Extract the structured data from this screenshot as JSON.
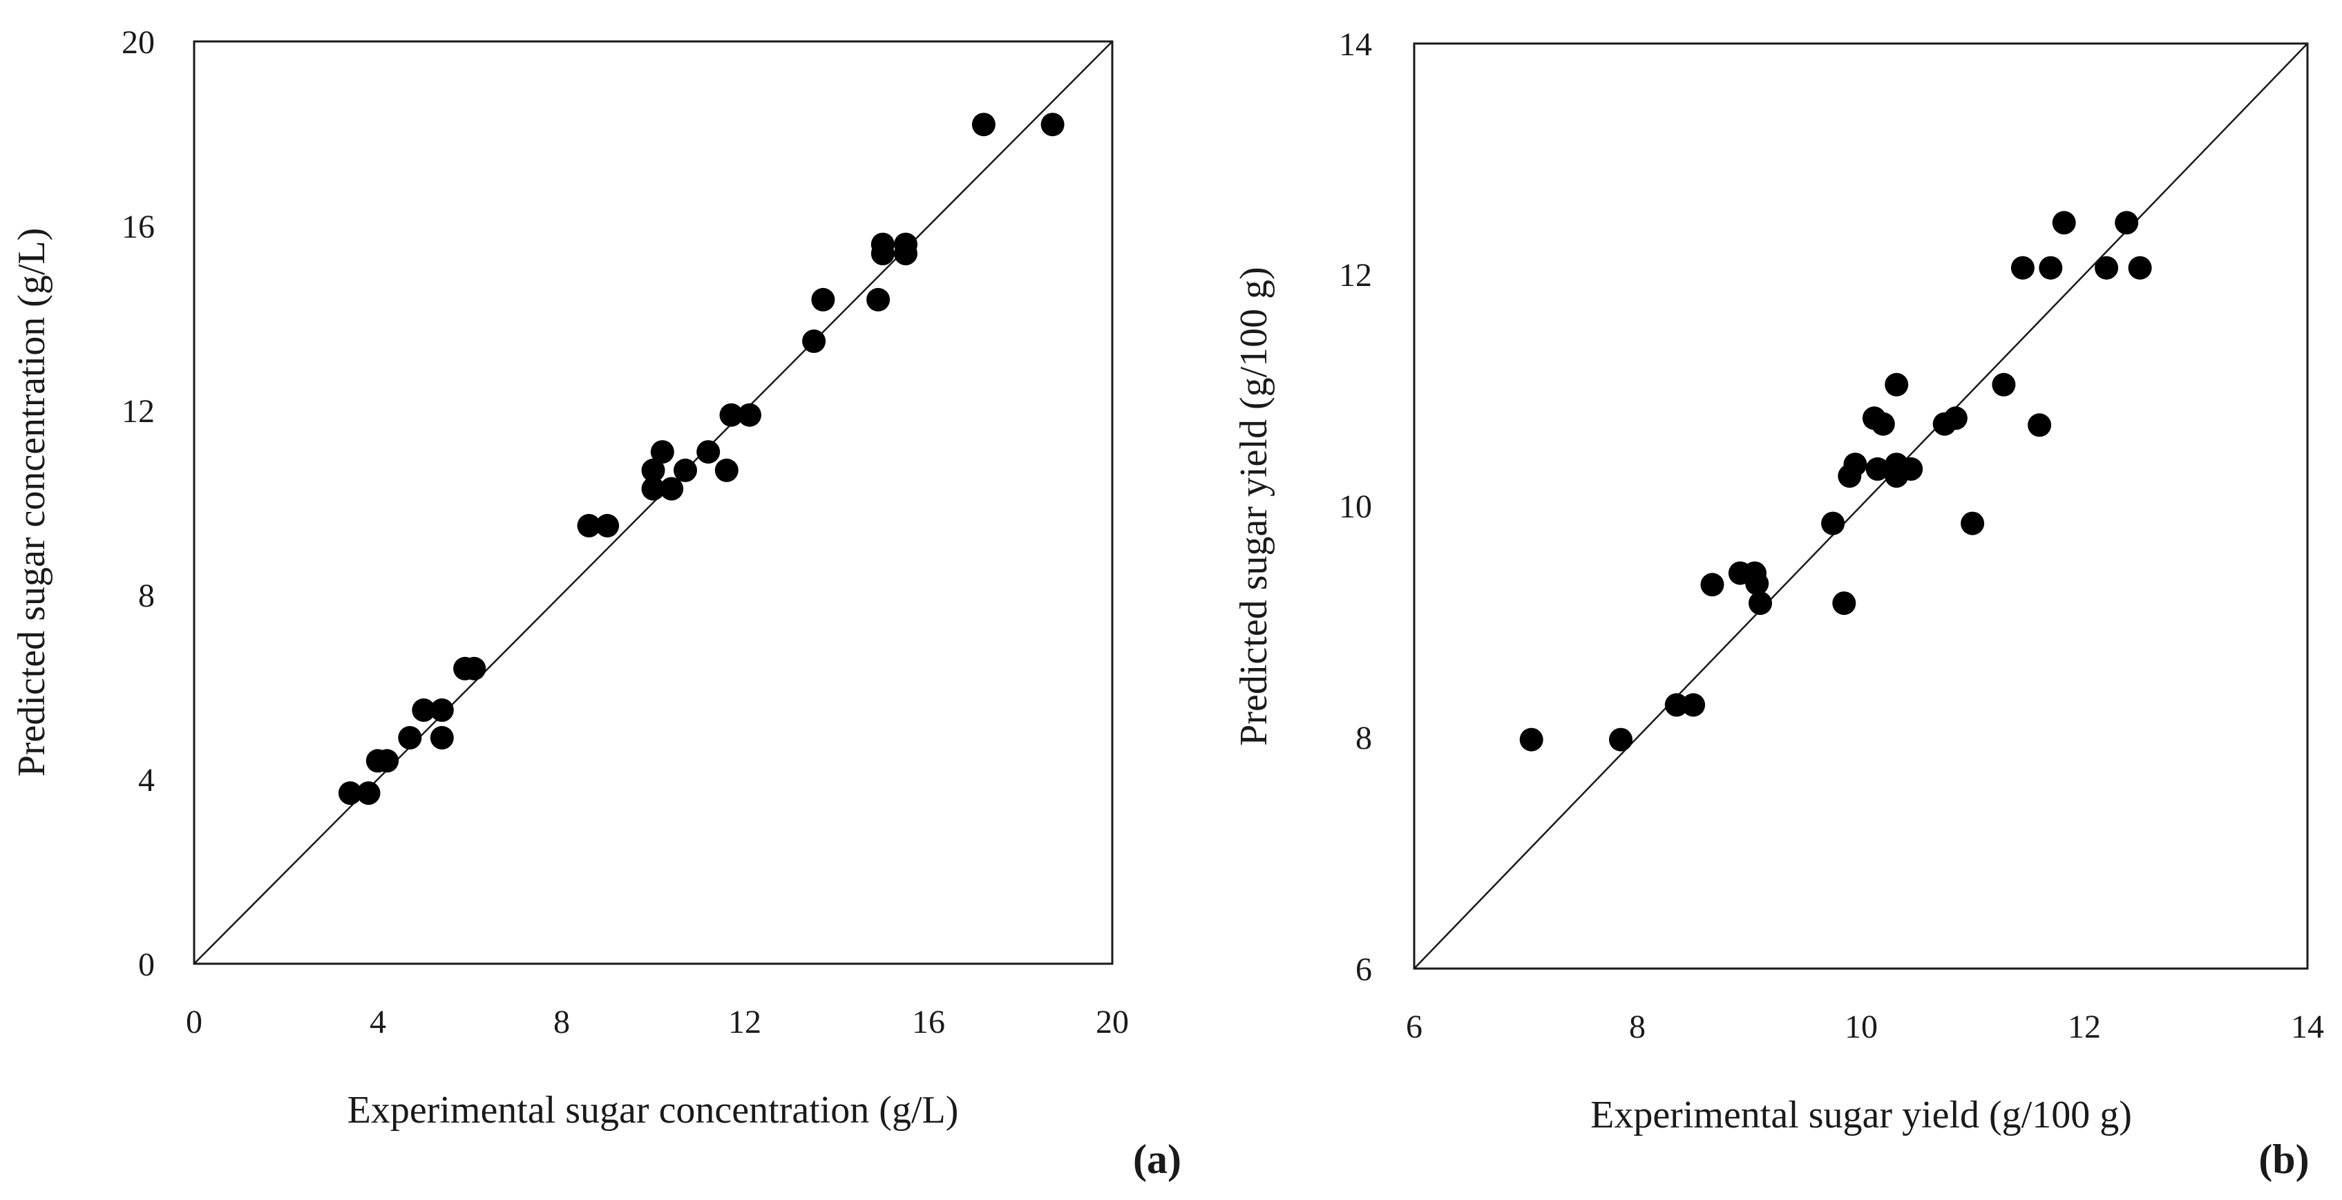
{
  "chart_data": [
    {
      "type": "scatter",
      "panel_label": "(a)",
      "xlabel": "Experimental sugar concentration (g/L)",
      "ylabel": "Predicted sugar concentration (g/L)",
      "xlim": [
        0,
        20
      ],
      "ylim": [
        0,
        20
      ],
      "xticks": [
        "0",
        "4",
        "8",
        "12",
        "16",
        "20"
      ],
      "yticks": [
        "0",
        "4",
        "8",
        "12",
        "16",
        "20"
      ],
      "grid": false,
      "legend": "none",
      "reference_line": "y = x",
      "points": [
        {
          "x": 3.4,
          "y": 3.7
        },
        {
          "x": 3.8,
          "y": 3.7
        },
        {
          "x": 4.0,
          "y": 4.4
        },
        {
          "x": 4.2,
          "y": 4.4
        },
        {
          "x": 4.7,
          "y": 4.9
        },
        {
          "x": 5.0,
          "y": 5.5
        },
        {
          "x": 5.4,
          "y": 5.5
        },
        {
          "x": 5.4,
          "y": 4.9
        },
        {
          "x": 5.9,
          "y": 6.4
        },
        {
          "x": 6.1,
          "y": 6.4
        },
        {
          "x": 8.6,
          "y": 9.5
        },
        {
          "x": 9.0,
          "y": 9.5
        },
        {
          "x": 10.0,
          "y": 10.7
        },
        {
          "x": 10.0,
          "y": 10.3
        },
        {
          "x": 10.2,
          "y": 11.1
        },
        {
          "x": 10.4,
          "y": 10.3
        },
        {
          "x": 10.7,
          "y": 10.7
        },
        {
          "x": 11.2,
          "y": 11.1
        },
        {
          "x": 11.6,
          "y": 10.7
        },
        {
          "x": 11.7,
          "y": 11.9
        },
        {
          "x": 12.1,
          "y": 11.9
        },
        {
          "x": 13.5,
          "y": 13.5
        },
        {
          "x": 13.7,
          "y": 14.4
        },
        {
          "x": 14.9,
          "y": 14.4
        },
        {
          "x": 15.0,
          "y": 15.4
        },
        {
          "x": 15.0,
          "y": 15.6
        },
        {
          "x": 15.5,
          "y": 15.4
        },
        {
          "x": 15.5,
          "y": 15.6
        },
        {
          "x": 17.2,
          "y": 18.2
        },
        {
          "x": 18.7,
          "y": 18.2
        }
      ]
    },
    {
      "type": "scatter",
      "panel_label": "(b)",
      "xlabel": "Experimental sugar yield (g/100 g)",
      "ylabel": "Predicted sugar yield (g/100 g)",
      "xlim": [
        6,
        14
      ],
      "ylim": [
        6,
        14
      ],
      "xticks": [
        "6",
        "8",
        "10",
        "12",
        "14"
      ],
      "yticks": [
        "6",
        "8",
        "10",
        "12",
        "14"
      ],
      "grid": false,
      "legend": "none",
      "reference_line": "y = x",
      "points": [
        {
          "x": 7.05,
          "y": 7.98
        },
        {
          "x": 7.85,
          "y": 7.98
        },
        {
          "x": 8.35,
          "y": 8.28
        },
        {
          "x": 8.5,
          "y": 8.28
        },
        {
          "x": 8.67,
          "y": 9.32
        },
        {
          "x": 8.92,
          "y": 9.42
        },
        {
          "x": 9.05,
          "y": 9.42
        },
        {
          "x": 9.07,
          "y": 9.33
        },
        {
          "x": 9.1,
          "y": 9.16
        },
        {
          "x": 9.75,
          "y": 9.85
        },
        {
          "x": 9.85,
          "y": 9.16
        },
        {
          "x": 9.9,
          "y": 10.26
        },
        {
          "x": 9.95,
          "y": 10.36
        },
        {
          "x": 10.12,
          "y": 10.76
        },
        {
          "x": 10.15,
          "y": 10.32
        },
        {
          "x": 10.2,
          "y": 10.71
        },
        {
          "x": 10.32,
          "y": 10.26
        },
        {
          "x": 10.32,
          "y": 10.36
        },
        {
          "x": 10.32,
          "y": 11.05
        },
        {
          "x": 10.45,
          "y": 10.32
        },
        {
          "x": 10.75,
          "y": 10.71
        },
        {
          "x": 10.85,
          "y": 10.76
        },
        {
          "x": 11.0,
          "y": 9.85
        },
        {
          "x": 11.28,
          "y": 11.05
        },
        {
          "x": 11.45,
          "y": 12.06
        },
        {
          "x": 11.6,
          "y": 10.7
        },
        {
          "x": 11.7,
          "y": 12.06
        },
        {
          "x": 11.82,
          "y": 12.45
        },
        {
          "x": 12.2,
          "y": 12.06
        },
        {
          "x": 12.38,
          "y": 12.45
        },
        {
          "x": 12.5,
          "y": 12.06
        }
      ]
    }
  ]
}
